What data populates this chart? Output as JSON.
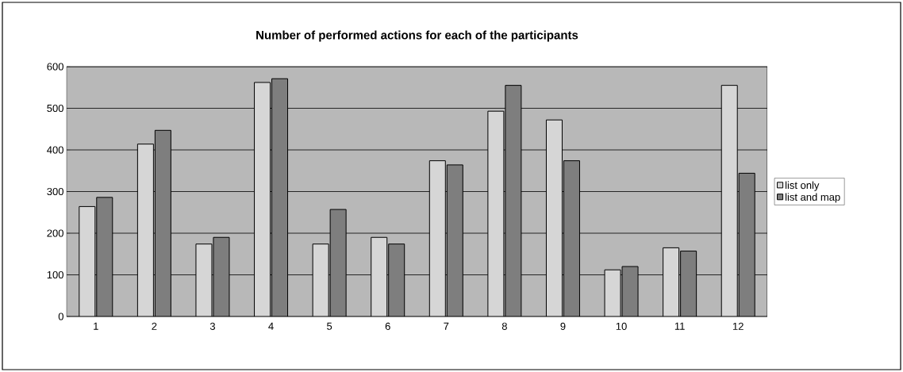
{
  "chart_data": {
    "type": "bar",
    "title": "Number of performed actions for each of the participants",
    "categories": [
      "1",
      "2",
      "3",
      "4",
      "5",
      "6",
      "7",
      "8",
      "9",
      "10",
      "11",
      "12"
    ],
    "series": [
      {
        "name": "list only",
        "color": "#d6d6d6",
        "values": [
          264,
          414,
          174,
          562,
          174,
          190,
          374,
          493,
          472,
          112,
          165,
          555
        ]
      },
      {
        "name": "list and map",
        "color": "#7e7e7e",
        "values": [
          286,
          447,
          190,
          571,
          257,
          174,
          364,
          555,
          374,
          120,
          157,
          344
        ]
      }
    ],
    "ylim": [
      0,
      600
    ],
    "yticks": [
      0,
      100,
      200,
      300,
      400,
      500,
      600
    ],
    "grid": "y",
    "legend": "right"
  }
}
